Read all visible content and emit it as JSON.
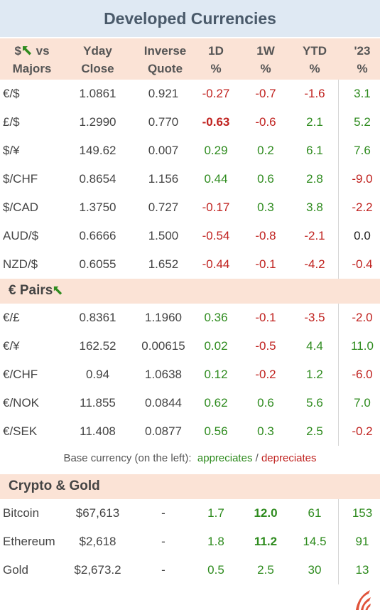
{
  "title": "Developed Currencies",
  "header": {
    "col0_line1": "$",
    "col0_line1b": "vs",
    "col0_line2": "Majors",
    "col1": [
      "Yday",
      "Close"
    ],
    "col2": [
      "Inverse",
      "Quote"
    ],
    "col3": [
      "1D",
      "%"
    ],
    "col4": [
      "1W",
      "%"
    ],
    "col5": [
      "YTD",
      "%"
    ],
    "col6": [
      "'23",
      "%"
    ]
  },
  "majors": [
    {
      "pair": "€/$",
      "close": "1.0861",
      "inverse": "0.921",
      "d1": "-0.27",
      "w1": "-0.7",
      "ytd": "-1.6",
      "y23": "3.1"
    },
    {
      "pair": "£/$",
      "close": "1.2990",
      "inverse": "0.770",
      "d1": "-0.63",
      "w1": "-0.6",
      "ytd": "2.1",
      "y23": "5.2"
    },
    {
      "pair": "$/¥",
      "close": "149.62",
      "inverse": "0.007",
      "d1": "0.29",
      "w1": "0.2",
      "ytd": "6.1",
      "y23": "7.6"
    },
    {
      "pair": "$/CHF",
      "close": "0.8654",
      "inverse": "1.156",
      "d1": "0.44",
      "w1": "0.6",
      "ytd": "2.8",
      "y23": "-9.0"
    },
    {
      "pair": "$/CAD",
      "close": "1.3750",
      "inverse": "0.727",
      "d1": "-0.17",
      "w1": "0.3",
      "ytd": "3.8",
      "y23": "-2.2"
    },
    {
      "pair": "AUD/$",
      "close": "0.6666",
      "inverse": "1.500",
      "d1": "-0.54",
      "w1": "-0.8",
      "ytd": "-2.1",
      "y23": "0.0"
    },
    {
      "pair": "NZD/$",
      "close": "0.6055",
      "inverse": "1.652",
      "d1": "-0.44",
      "w1": "-0.1",
      "ytd": "-4.2",
      "y23": "-0.4"
    }
  ],
  "euro_section_title": "€ Pairs",
  "euro_pairs": [
    {
      "pair": "€/£",
      "close": "0.8361",
      "inverse": "1.1960",
      "d1": "0.36",
      "w1": "-0.1",
      "ytd": "-3.5",
      "y23": "-2.0"
    },
    {
      "pair": "€/¥",
      "close": "162.52",
      "inverse": "0.00615",
      "d1": "0.02",
      "w1": "-0.5",
      "ytd": "4.4",
      "y23": "11.0"
    },
    {
      "pair": "€/CHF",
      "close": "0.94",
      "inverse": "1.0638",
      "d1": "0.12",
      "w1": "-0.2",
      "ytd": "1.2",
      "y23": "-6.0"
    },
    {
      "pair": "€/NOK",
      "close": "11.855",
      "inverse": "0.0844",
      "d1": "0.62",
      "w1": "0.6",
      "ytd": "5.6",
      "y23": "7.0"
    },
    {
      "pair": "€/SEK",
      "close": "11.408",
      "inverse": "0.0877",
      "d1": "0.56",
      "w1": "0.3",
      "ytd": "2.5",
      "y23": "-0.2"
    }
  ],
  "note": {
    "prefix": "Base currency (on the left):",
    "appreciates": "appreciates",
    "slash": "/",
    "depreciates": "depreciates"
  },
  "crypto_section_title": "Crypto & Gold",
  "crypto": [
    {
      "pair": "Bitcoin",
      "close": "$67,613",
      "inverse": "-",
      "d1": "1.7",
      "w1": "12.0",
      "ytd": "61",
      "y23": "153"
    },
    {
      "pair": "Ethereum",
      "close": "$2,618",
      "inverse": "-",
      "d1": "1.8",
      "w1": "11.2",
      "ytd": "14.5",
      "y23": "91"
    },
    {
      "pair": "Gold",
      "close": "$2,673.2",
      "inverse": "-",
      "d1": "0.5",
      "w1": "2.5",
      "ytd": "30",
      "y23": "13"
    }
  ],
  "colors": {
    "positive": "#2e8b1e",
    "negative": "#c0221f",
    "header_bg": "#fbe3d6",
    "title_bg": "#dfe9f3"
  }
}
